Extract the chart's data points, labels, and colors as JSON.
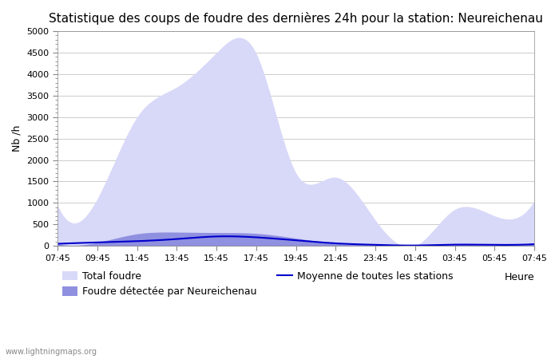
{
  "title": "Statistique des coups de foudre des dernières 24h pour la station: Neureichenau",
  "ylabel": "Nb /h",
  "xlabel": "Heure",
  "watermark": "www.lightningmaps.org",
  "ylim": [
    0,
    5000
  ],
  "x_labels": [
    "07:45",
    "09:45",
    "11:45",
    "13:45",
    "15:45",
    "17:45",
    "19:45",
    "21:45",
    "23:45",
    "01:45",
    "03:45",
    "05:45",
    "07:45"
  ],
  "total_foudre": [
    950,
    1100,
    3000,
    3700,
    4500,
    4480,
    1700,
    1600,
    600,
    0,
    850,
    700,
    1050
  ],
  "foudre_detected": [
    50,
    80,
    280,
    320,
    310,
    290,
    180,
    60,
    20,
    0,
    30,
    20,
    40
  ],
  "moyenne": [
    50,
    80,
    110,
    160,
    220,
    200,
    130,
    60,
    25,
    10,
    30,
    25,
    40
  ],
  "color_total": "#d8d8f8",
  "color_detected": "#9090e0",
  "color_moyenne": "#0000cc",
  "background": "#ffffff",
  "grid_color": "#cccccc",
  "title_fontsize": 11,
  "label_fontsize": 9,
  "tick_fontsize": 8
}
